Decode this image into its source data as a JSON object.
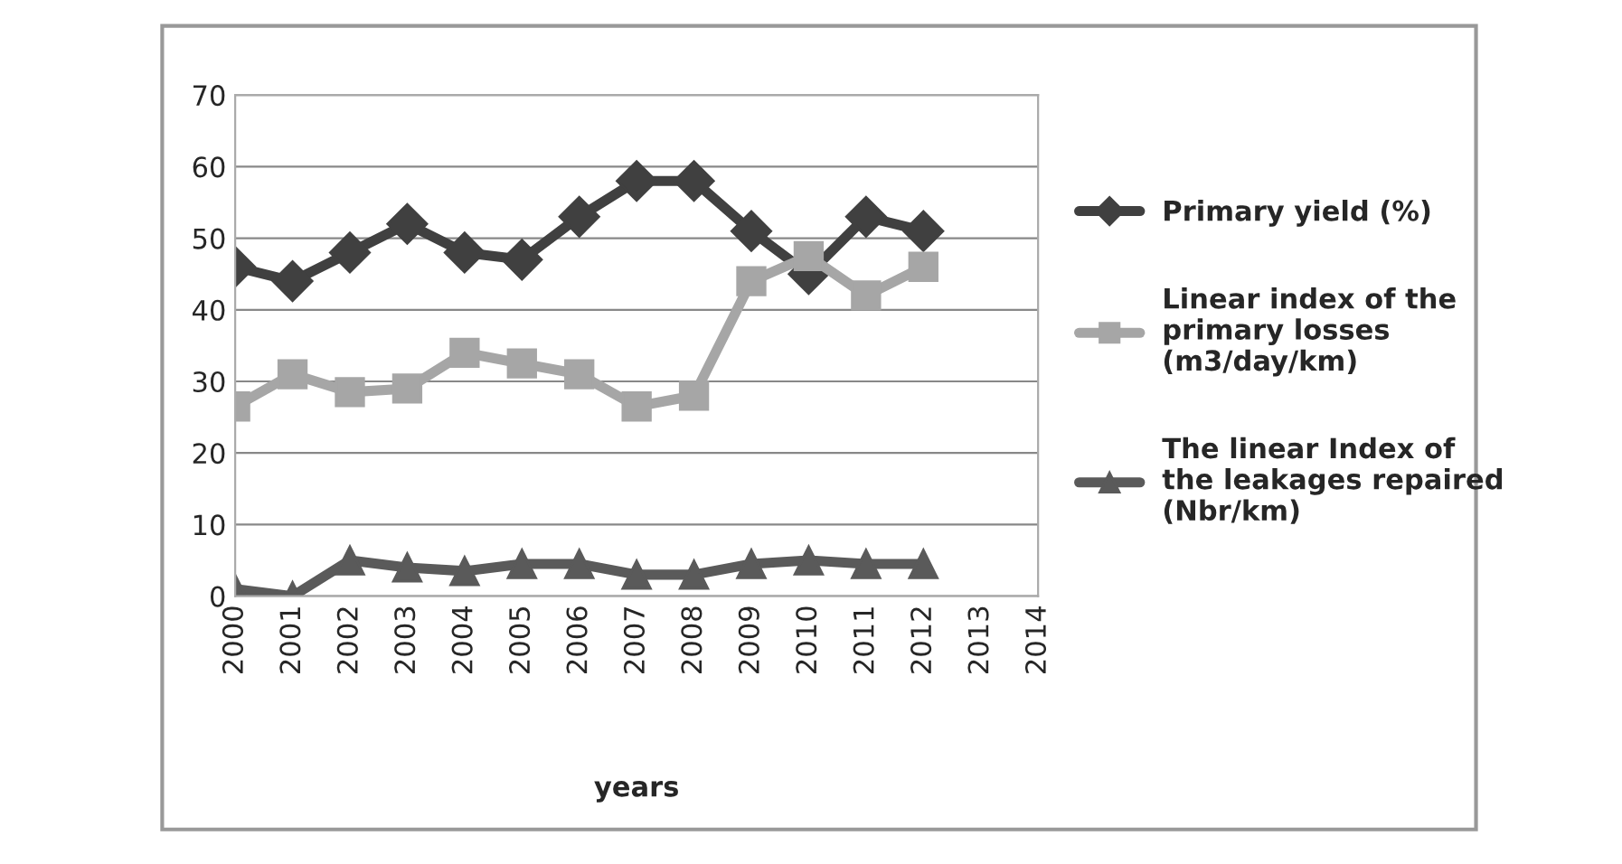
{
  "chart_data": {
    "type": "line",
    "xlabel": "years",
    "categories": [
      "2000",
      "2001",
      "2002",
      "2003",
      "2004",
      "2005",
      "2006",
      "2007",
      "2008",
      "2009",
      "2010",
      "2011",
      "2012",
      "2013",
      "2014"
    ],
    "ylim": [
      0,
      70
    ],
    "yticks": [
      0,
      10,
      20,
      30,
      40,
      50,
      60,
      70
    ],
    "grid": "y",
    "legend": "right",
    "series": [
      {
        "name": "Primary yield (%)",
        "color": "#404040",
        "marker": "diamond",
        "values": [
          46,
          44,
          48,
          52,
          48,
          47,
          53,
          58,
          58,
          51,
          45,
          53,
          51,
          null,
          null
        ]
      },
      {
        "name": "Linear index of the primary losses (m3/day/km)",
        "color": "#a6a6a6",
        "marker": "square",
        "values": [
          26.5,
          31,
          28.5,
          29,
          34,
          32.5,
          31,
          26.5,
          28,
          44,
          47.5,
          42,
          46,
          null,
          null
        ]
      },
      {
        "name": "The linear Index of the leakages repaired (Nbr/km)",
        "color": "#5a5a5a",
        "marker": "triangle",
        "values": [
          1,
          0,
          5,
          4,
          3.5,
          4.5,
          4.5,
          3,
          3,
          4.5,
          5,
          4.5,
          4.5,
          null,
          null
        ]
      }
    ]
  }
}
